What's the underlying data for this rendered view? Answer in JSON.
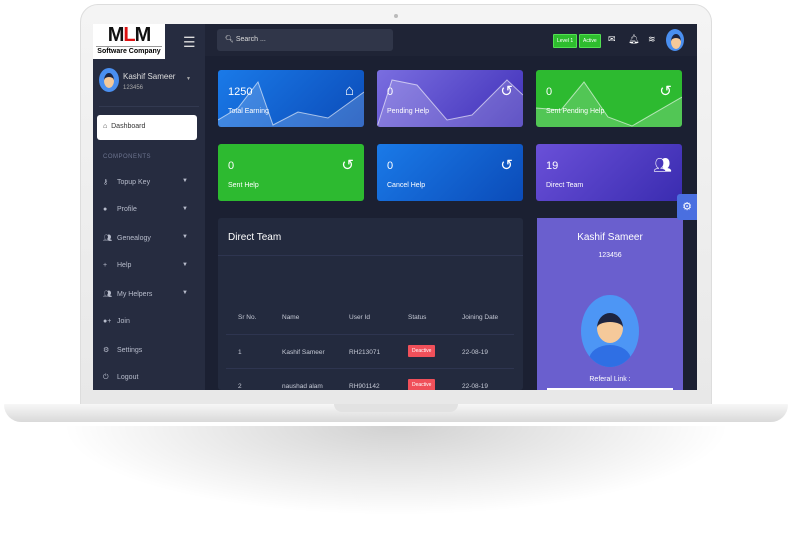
{
  "logo": {
    "brand": "MLM",
    "tagline": "Software Company"
  },
  "sidebar": {
    "user": {
      "name": "Kashif Sameer",
      "id": "123456"
    },
    "active": "Dashboard",
    "section": "COMPONENTS",
    "items": [
      {
        "label": "Topup Key",
        "icon": "key-icon",
        "caret": true
      },
      {
        "label": "Profile",
        "icon": "user-icon",
        "caret": true
      },
      {
        "label": "Genealogy",
        "icon": "users-icon",
        "caret": true
      },
      {
        "label": "Help",
        "icon": "plus-icon",
        "caret": true
      },
      {
        "label": "My Helpers",
        "icon": "users-icon",
        "caret": true
      },
      {
        "label": "Join",
        "icon": "user-plus-icon",
        "caret": false
      },
      {
        "label": "Settings",
        "icon": "gear-icon",
        "caret": false
      },
      {
        "label": "Logout",
        "icon": "power-icon",
        "caret": false
      }
    ]
  },
  "topbar": {
    "search_placeholder": "Search ...",
    "level": "Level 1",
    "status": "Active"
  },
  "cards": [
    {
      "value": "1250",
      "label": "Total Earning",
      "icon": "home-icon",
      "color": "#1a6fe0"
    },
    {
      "value": "0",
      "label": "Pending Help",
      "icon": "history-icon",
      "color": "#5b4fd0"
    },
    {
      "value": "0",
      "label": "Sent Pending Help",
      "icon": "history-icon",
      "color": "#2dba30"
    },
    {
      "value": "0",
      "label": "Sent Help",
      "icon": "history-icon",
      "color": "#2dba30"
    },
    {
      "value": "0",
      "label": "Cancel Help",
      "icon": "history-icon",
      "color": "#1466d8"
    },
    {
      "value": "19",
      "label": "Direct Team",
      "icon": "users-icon",
      "color": "#5a45d0"
    }
  ],
  "team": {
    "title": "Direct Team",
    "headers": [
      "Sr No.",
      "Name",
      "User Id",
      "Status",
      "Joining Date"
    ],
    "rows": [
      [
        "1",
        "Kashif Sameer",
        "RH213071",
        "Deactive",
        "22-08-19"
      ],
      [
        "2",
        "naushad alam",
        "RH901142",
        "Deactive",
        "22-08-19"
      ]
    ]
  },
  "profile": {
    "name": "Kashif Sameer",
    "id": "123456",
    "referral_label": "Referal Link :"
  }
}
